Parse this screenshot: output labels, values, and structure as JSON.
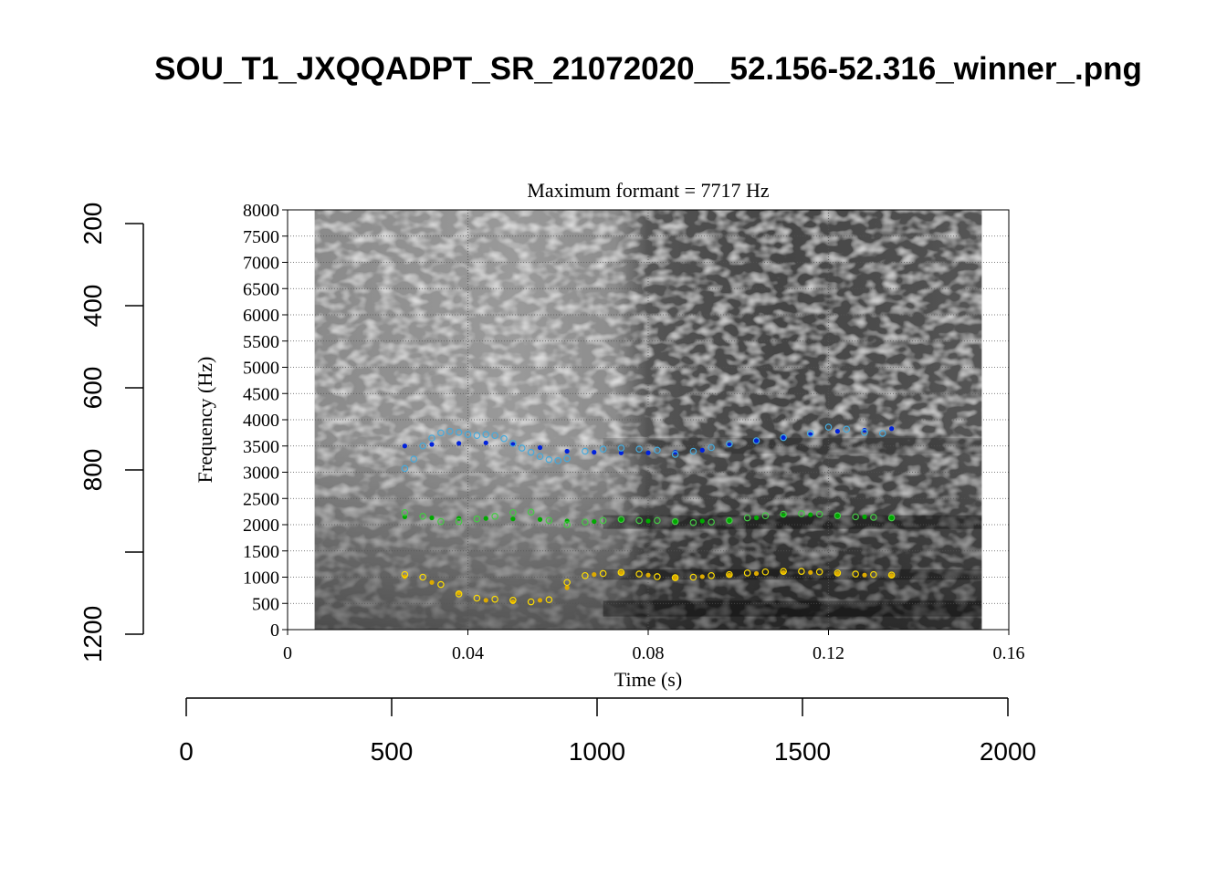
{
  "page": {
    "title": "SOU_T1_JXQQADPT_SR_21072020__52.156-52.316_winner_.png"
  },
  "chart_data": [
    {
      "type": "scatter",
      "title": "Maximum formant  =  7717 Hz",
      "xlabel": "Time (s)",
      "ylabel": "Frequency (Hz)",
      "xlim": [
        0,
        0.16
      ],
      "ylim": [
        0,
        8000
      ],
      "x_ticks": [
        0,
        0.04,
        0.08,
        0.12,
        0.16
      ],
      "x_tick_labels": [
        "0",
        "0.04",
        "0.08",
        "0.12",
        "0.16"
      ],
      "y_ticks": [
        0,
        500,
        1000,
        1500,
        2000,
        2500,
        3000,
        3500,
        4000,
        4500,
        5000,
        5500,
        6000,
        6500,
        7000,
        7500,
        8000
      ],
      "y_tick_labels": [
        "0",
        "500",
        "1000",
        "1500",
        "2000",
        "2500",
        "3000",
        "3500",
        "4000",
        "4500",
        "5000",
        "5500",
        "6000",
        "6500",
        "7000",
        "7500",
        "8000"
      ],
      "grid": true,
      "background": "grayscale spectrogram",
      "spectrogram_time_range": [
        0.006,
        0.154
      ],
      "series": [
        {
          "style": "filled-dots",
          "color": "#0022dd",
          "x": [
            0.026,
            0.032,
            0.038,
            0.044,
            0.05,
            0.056,
            0.062,
            0.068,
            0.074,
            0.08,
            0.086,
            0.092,
            0.098,
            0.104,
            0.11,
            0.116,
            0.122,
            0.128,
            0.134
          ],
          "y": [
            3500,
            3530,
            3550,
            3560,
            3530,
            3470,
            3400,
            3380,
            3370,
            3370,
            3380,
            3420,
            3520,
            3600,
            3660,
            3720,
            3780,
            3800,
            3830
          ]
        },
        {
          "style": "open-circles",
          "color": "#44aadd",
          "x": [
            0.026,
            0.028,
            0.03,
            0.032,
            0.034,
            0.036,
            0.038,
            0.04,
            0.042,
            0.044,
            0.046,
            0.048,
            0.05,
            0.052,
            0.054,
            0.056,
            0.058,
            0.06,
            0.062,
            0.066,
            0.07,
            0.074,
            0.078,
            0.082,
            0.086,
            0.09,
            0.094,
            0.098,
            0.104,
            0.11,
            0.116,
            0.12,
            0.124,
            0.128,
            0.132
          ],
          "y": [
            3070,
            3250,
            3500,
            3650,
            3750,
            3780,
            3760,
            3720,
            3700,
            3720,
            3700,
            3640,
            3550,
            3460,
            3380,
            3300,
            3240,
            3220,
            3260,
            3400,
            3440,
            3460,
            3440,
            3420,
            3340,
            3400,
            3470,
            3540,
            3600,
            3660,
            3740,
            3860,
            3820,
            3760,
            3740
          ]
        },
        {
          "style": "filled-dots",
          "color": "#00aa00",
          "x": [
            0.026,
            0.032,
            0.038,
            0.044,
            0.05,
            0.056,
            0.062,
            0.068,
            0.074,
            0.08,
            0.086,
            0.092,
            0.098,
            0.104,
            0.11,
            0.116,
            0.122,
            0.128,
            0.134
          ],
          "y": [
            2150,
            2130,
            2120,
            2120,
            2110,
            2100,
            2070,
            2060,
            2090,
            2070,
            2060,
            2070,
            2080,
            2130,
            2180,
            2190,
            2170,
            2150,
            2130
          ]
        },
        {
          "style": "open-circles",
          "color": "#44cc44",
          "x": [
            0.026,
            0.03,
            0.034,
            0.038,
            0.042,
            0.046,
            0.05,
            0.054,
            0.058,
            0.062,
            0.066,
            0.07,
            0.074,
            0.078,
            0.082,
            0.086,
            0.09,
            0.094,
            0.098,
            0.102,
            0.106,
            0.11,
            0.114,
            0.118,
            0.122,
            0.126,
            0.13,
            0.134
          ],
          "y": [
            2230,
            2160,
            2060,
            2060,
            2110,
            2160,
            2230,
            2240,
            2080,
            2000,
            2050,
            2080,
            2100,
            2080,
            2080,
            2060,
            2040,
            2050,
            2080,
            2130,
            2170,
            2200,
            2210,
            2200,
            2170,
            2150,
            2140,
            2130
          ]
        },
        {
          "style": "filled-dots",
          "color": "#ddaa00",
          "x": [
            0.026,
            0.032,
            0.038,
            0.044,
            0.05,
            0.056,
            0.062,
            0.068,
            0.074,
            0.08,
            0.086,
            0.092,
            0.098,
            0.104,
            0.11,
            0.116,
            0.122,
            0.128,
            0.134
          ],
          "y": [
            1010,
            900,
            700,
            560,
            530,
            560,
            800,
            1050,
            1080,
            1040,
            990,
            1010,
            1040,
            1070,
            1090,
            1090,
            1070,
            1040,
            1030
          ]
        },
        {
          "style": "open-circles",
          "color": "#ffdd00",
          "x": [
            0.026,
            0.03,
            0.034,
            0.038,
            0.042,
            0.046,
            0.05,
            0.054,
            0.058,
            0.062,
            0.066,
            0.07,
            0.074,
            0.078,
            0.082,
            0.086,
            0.09,
            0.094,
            0.098,
            0.102,
            0.106,
            0.11,
            0.114,
            0.118,
            0.122,
            0.126,
            0.13,
            0.134
          ],
          "y": [
            1050,
            1000,
            860,
            680,
            600,
            580,
            560,
            530,
            570,
            900,
            1030,
            1070,
            1090,
            1060,
            1010,
            990,
            1000,
            1030,
            1050,
            1080,
            1100,
            1110,
            1110,
            1100,
            1080,
            1060,
            1050,
            1040
          ]
        }
      ]
    },
    {
      "type": "axes",
      "left_axis": {
        "range": [
          200,
          1200
        ],
        "ticks": [
          200,
          400,
          600,
          800,
          1000,
          1200
        ],
        "tick_labels": [
          "200",
          "400",
          "600",
          "800",
          "",
          "1200"
        ],
        "reversed": true
      },
      "bottom_axis": {
        "range": [
          0,
          2000
        ],
        "ticks": [
          0,
          500,
          1000,
          1500,
          2000
        ],
        "tick_labels": [
          "0",
          "500",
          "1000",
          "1500",
          "2000"
        ]
      }
    }
  ]
}
